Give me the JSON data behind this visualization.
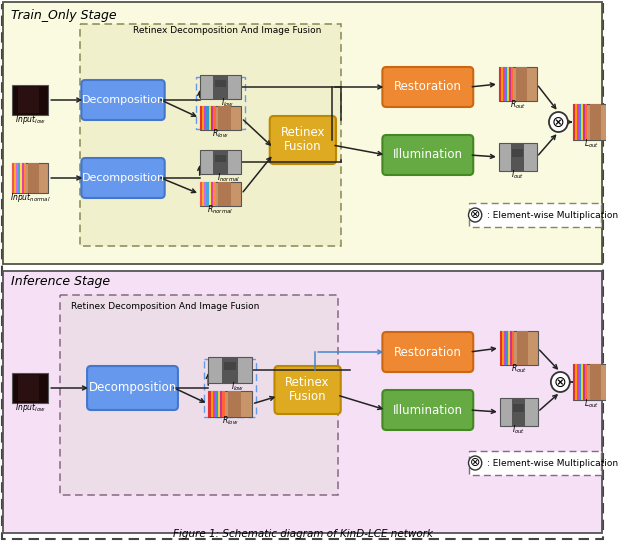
{
  "title": "Figure 1: Schematic diagram of KinD-LCE network",
  "top_label": "Train_Only Stage",
  "bottom_label": "Inference Stage",
  "top_bg": "#fdfde8",
  "bottom_bg": "#f5dff5",
  "decomp_fc": "#6699ee",
  "decomp_ec": "#4477cc",
  "restore_fc": "#ee8833",
  "restore_ec": "#cc6611",
  "illum_fc": "#66aa44",
  "illum_ec": "#448822",
  "fusion_fc": "#ddaa22",
  "fusion_ec": "#bb8800",
  "arrow_color": "#222222",
  "blue_line_color": "#4488cc",
  "legend_text": ": Element-wise Multiplication",
  "otimes": "⊗",
  "stripe_colors": [
    "#e03030",
    "#ff9900",
    "#cc44cc",
    "#3399cc",
    "#eecc33",
    "#cc3399",
    "#ff6633"
  ],
  "stripe_colors2": [
    "#ee5555",
    "#ffaa22",
    "#dd66dd",
    "#44aadd",
    "#ffdd44",
    "#dd44aa",
    "#ff8844"
  ]
}
